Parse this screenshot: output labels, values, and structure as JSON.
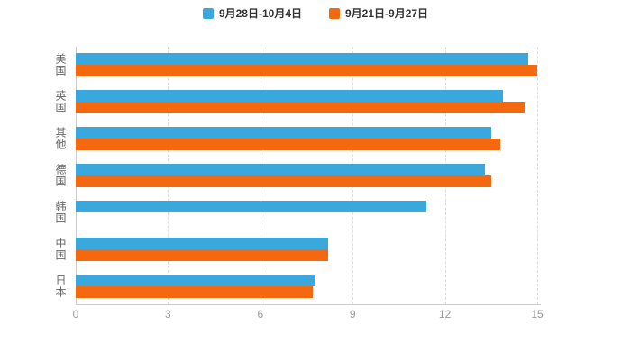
{
  "chart_data": {
    "type": "bar",
    "orientation": "horizontal",
    "title": "",
    "xlabel": "",
    "ylabel": "",
    "categories": [
      "美国",
      "英国",
      "其他",
      "德国",
      "韩国",
      "中国",
      "日本"
    ],
    "series": [
      {
        "name": "9月28日-10月4日",
        "color": "#3ba8dd",
        "values": [
          14.7,
          13.9,
          13.5,
          13.3,
          11.4,
          8.2,
          7.8
        ]
      },
      {
        "name": "9月21日-9月27日",
        "color": "#f4690f",
        "values": [
          15.0,
          14.6,
          13.8,
          13.5,
          0,
          8.2,
          7.7
        ]
      }
    ],
    "xlim": [
      0,
      15
    ],
    "x_ticks": [
      0,
      3,
      6,
      9,
      12,
      15
    ],
    "grid": true,
    "grid_style": "dashed-vertical",
    "legend_position": "top",
    "background": "#ffffff"
  }
}
